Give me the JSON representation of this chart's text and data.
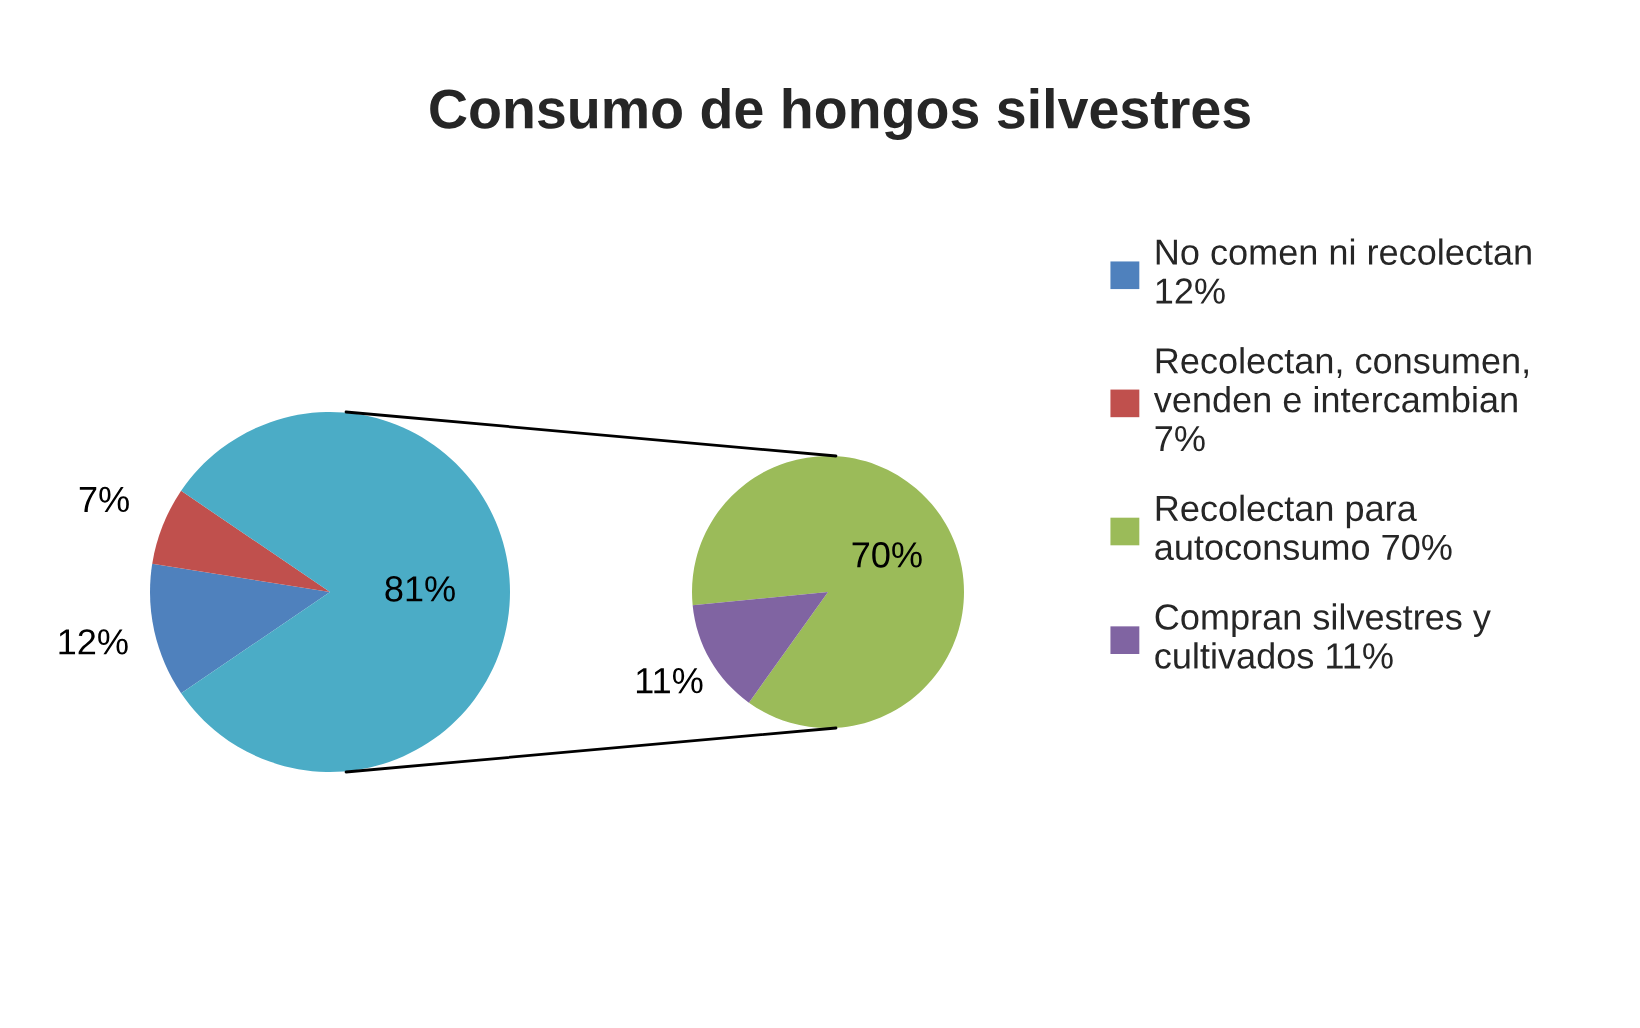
{
  "chart_data": [
    {
      "type": "pie",
      "title": "Consumo de hongos silvestres",
      "categories": [
        "No comen ni recolectan\n12%",
        "Recolectan, consumen,\nvenden e intercambian\n7%",
        null
      ],
      "values": [
        12,
        7,
        81
      ],
      "colors": [
        "#4f81bd",
        "#c0504d",
        "#4bacc6"
      ],
      "value_labels": [
        "12%",
        "7%",
        "81%"
      ],
      "legend": "right"
    },
    {
      "type": "pie",
      "categories": [
        "Recolectan para\nautoconsumo 70%",
        "Compran silvestres y\ncultivados 11%"
      ],
      "values": [
        70,
        11
      ],
      "colors": [
        "#9bbb59",
        "#8064a2"
      ],
      "value_labels": [
        "70%",
        "11%"
      ],
      "legend": "right"
    }
  ]
}
